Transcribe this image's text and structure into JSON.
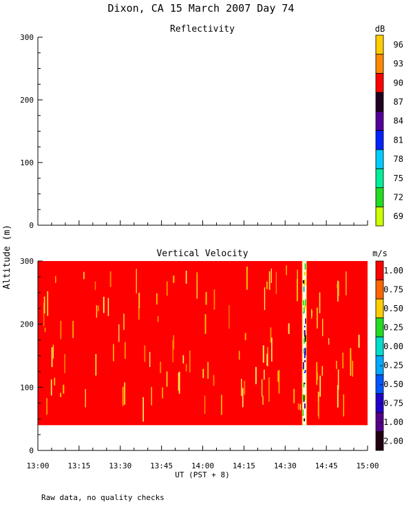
{
  "title": "Dixon, CA 15 March 2007  Day  74",
  "footnote": "Raw data, no quality checks",
  "shared_ylabel": "Altitude (m)",
  "xlabel": "UT  (PST + 8)",
  "chart_data": [
    {
      "type": "heatmap",
      "title": "Reflectivity",
      "units_label": "dB",
      "x_ticks": [
        "13:00",
        "13:15",
        "13:30",
        "13:45",
        "14:00",
        "14:15",
        "14:30",
        "14:45",
        "15:00"
      ],
      "y_ticks": [
        0,
        100,
        200,
        300
      ],
      "ylim": [
        0,
        300
      ],
      "colorbar": {
        "levels": [
          "69",
          "72",
          "75",
          "78",
          "81",
          "84",
          "87",
          "90",
          "93",
          "96"
        ],
        "colors": [
          "#ccff00",
          "#22dd22",
          "#00ee99",
          "#00ccff",
          "#0022ff",
          "#550099",
          "#220022",
          "#ff0000",
          "#ff8800",
          "#ffcc00"
        ]
      },
      "data": "no echoes"
    },
    {
      "type": "heatmap",
      "title": "Vertical Velocity",
      "units_label": "m/s",
      "x_ticks": [
        "13:00",
        "13:15",
        "13:30",
        "13:45",
        "14:00",
        "14:15",
        "14:30",
        "14:45",
        "15:00"
      ],
      "y_ticks": [
        0,
        100,
        200,
        300
      ],
      "ylim": [
        0,
        300
      ],
      "colorbar": {
        "levels": [
          "-2.00",
          "-1.00",
          "-0.75",
          "-0.50",
          "-0.25",
          "0.00",
          "0.25",
          "0.50",
          "0.75",
          "1.00"
        ],
        "colors": [
          "#220011",
          "#550088",
          "#2200cc",
          "#0055ff",
          "#00aaff",
          "#00ddcc",
          "#22dd22",
          "#ffcc00",
          "#ff6600",
          "#ff0000"
        ]
      },
      "data_extent": {
        "time": [
          "13:00",
          "15:00"
        ],
        "altitude": [
          40,
          300
        ]
      },
      "dominant_value": "1.00",
      "disturbance_time": "14:37"
    }
  ]
}
